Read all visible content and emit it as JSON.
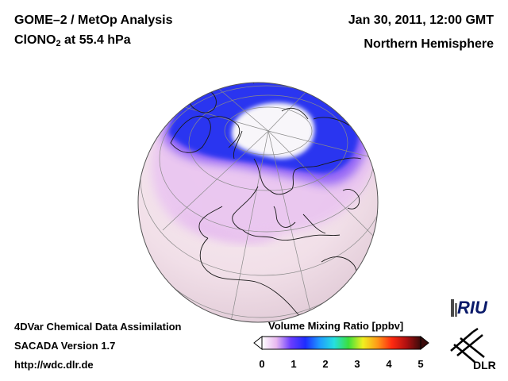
{
  "header": {
    "title": "GOME–2 / MetOp Analysis",
    "species_main": "ClONO",
    "species_sub": "2",
    "level": " at 55.4 hPa",
    "datetime": "Jan 30, 2011, 12:00 GMT",
    "hemisphere": "Northern Hemisphere"
  },
  "footer": {
    "method": "4DVar Chemical Data Assimilation",
    "version": "SACADA Version 1.7",
    "url": "http://wdc.dlr.de"
  },
  "colorbar": {
    "title": "Volume Mixing Ratio [ppbv]",
    "ticks": [
      "0",
      "1",
      "2",
      "3",
      "4",
      "5"
    ],
    "range": [
      0,
      5
    ],
    "colors": [
      "#ffffff",
      "#e8b8f0",
      "#6a3cff",
      "#1e2cff",
      "#1f9bff",
      "#25e0e0",
      "#3ce03c",
      "#f0f020",
      "#ff9a18",
      "#ff2a10",
      "#b01010",
      "#3a0a0a"
    ]
  },
  "logos": {
    "riu": "RIU",
    "dlr": "DLR"
  },
  "colors": {
    "background_field": "#f3e4ec",
    "low_ring": "#2a36f0",
    "polar_core": "#f8f6fa",
    "coast": "#1a1a1a",
    "grid": "#8a8a8a"
  }
}
